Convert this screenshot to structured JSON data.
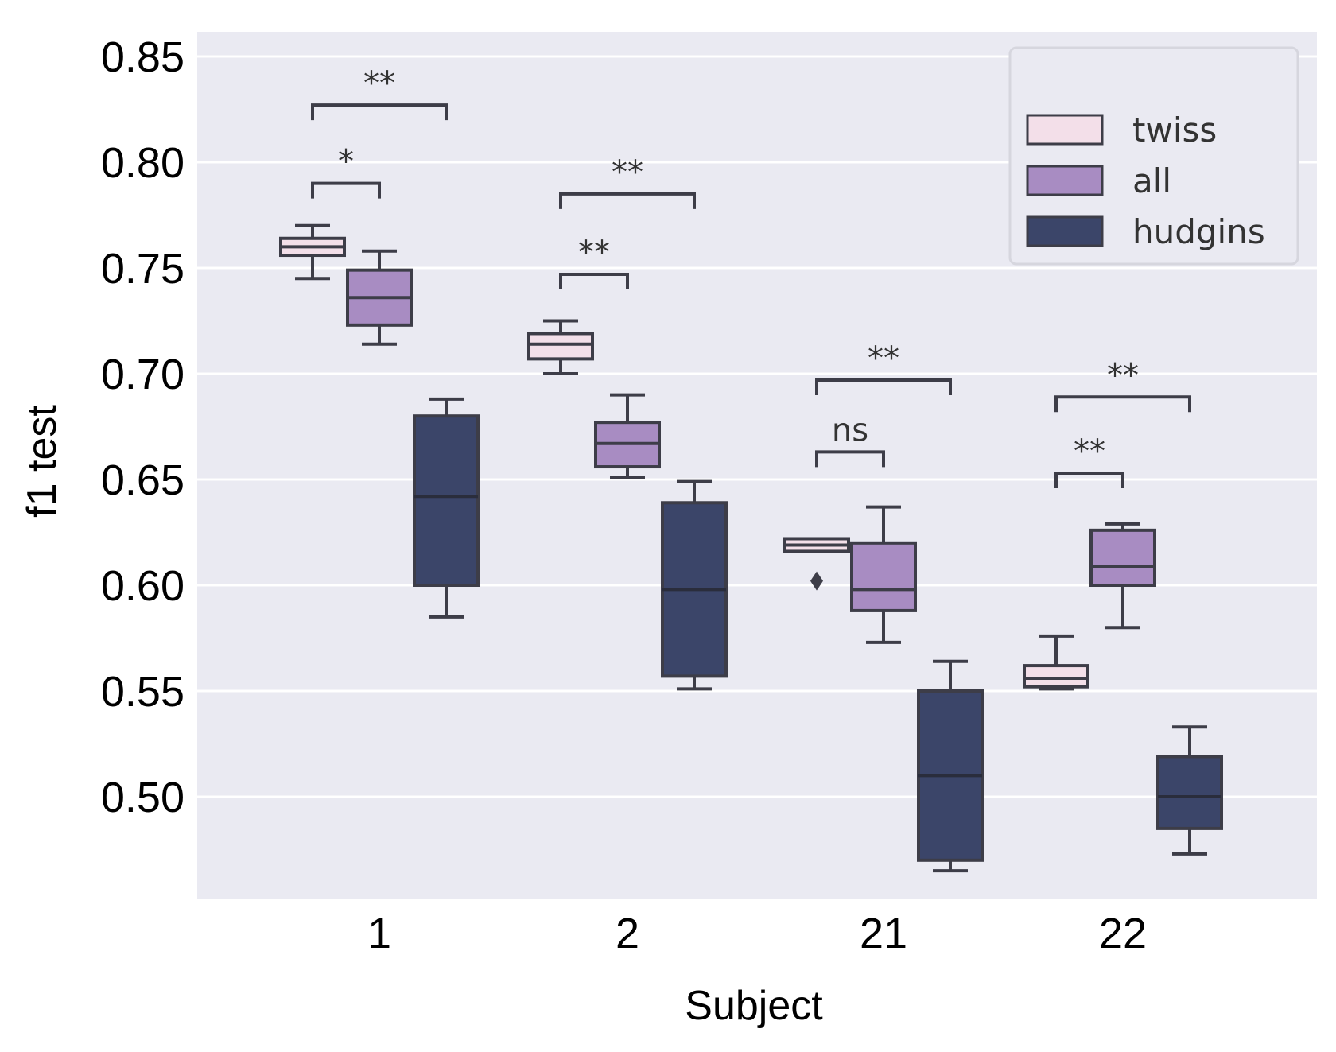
{
  "chart_data": {
    "type": "boxplot",
    "xlabel": "Subject",
    "ylabel": "f1 test",
    "ylim": [
      0.453,
      0.863
    ],
    "yticks": [
      0.5,
      0.55,
      0.6,
      0.65,
      0.7,
      0.75,
      0.8,
      0.85
    ],
    "ytick_labels": [
      "0.50",
      "0.55",
      "0.60",
      "0.65",
      "0.70",
      "0.75",
      "0.80",
      "0.85"
    ],
    "categories": [
      "1",
      "2",
      "21",
      "22"
    ],
    "grid": true,
    "legend_position": "top-right",
    "series": [
      {
        "name": "twiss",
        "color": "#f3dfe9",
        "boxes": [
          {
            "whislo": 0.745,
            "q1": 0.756,
            "med": 0.76,
            "q3": 0.764,
            "whishi": 0.77,
            "fliers": []
          },
          {
            "whislo": 0.7,
            "q1": 0.707,
            "med": 0.714,
            "q3": 0.719,
            "whishi": 0.725,
            "fliers": []
          },
          {
            "whislo": 0.616,
            "q1": 0.616,
            "med": 0.619,
            "q3": 0.622,
            "whishi": 0.622,
            "fliers": [
              0.602
            ]
          },
          {
            "whislo": 0.551,
            "q1": 0.552,
            "med": 0.556,
            "q3": 0.562,
            "whishi": 0.576,
            "fliers": []
          }
        ]
      },
      {
        "name": "all",
        "color": "#a88cc2",
        "boxes": [
          {
            "whislo": 0.714,
            "q1": 0.723,
            "med": 0.736,
            "q3": 0.749,
            "whishi": 0.758,
            "fliers": []
          },
          {
            "whislo": 0.651,
            "q1": 0.656,
            "med": 0.667,
            "q3": 0.677,
            "whishi": 0.69,
            "fliers": []
          },
          {
            "whislo": 0.573,
            "q1": 0.588,
            "med": 0.598,
            "q3": 0.62,
            "whishi": 0.637,
            "fliers": []
          },
          {
            "whislo": 0.58,
            "q1": 0.6,
            "med": 0.609,
            "q3": 0.626,
            "whishi": 0.629,
            "fliers": []
          }
        ]
      },
      {
        "name": "hudgins",
        "color": "#3b4569",
        "boxes": [
          {
            "whislo": 0.585,
            "q1": 0.6,
            "med": 0.642,
            "q3": 0.68,
            "whishi": 0.688,
            "fliers": []
          },
          {
            "whislo": 0.551,
            "q1": 0.557,
            "med": 0.598,
            "q3": 0.639,
            "whishi": 0.649,
            "fliers": []
          },
          {
            "whislo": 0.465,
            "q1": 0.47,
            "med": 0.51,
            "q3": 0.55,
            "whishi": 0.564,
            "fliers": []
          },
          {
            "whislo": 0.473,
            "q1": 0.485,
            "med": 0.5,
            "q3": 0.519,
            "whishi": 0.533,
            "fliers": []
          }
        ]
      }
    ],
    "annotations": [
      {
        "category": "1",
        "from": "twiss",
        "to": "hudgins",
        "text": "**",
        "y": 0.827
      },
      {
        "category": "1",
        "from": "twiss",
        "to": "all",
        "text": "*",
        "y": 0.79
      },
      {
        "category": "2",
        "from": "twiss",
        "to": "hudgins",
        "text": "**",
        "y": 0.785
      },
      {
        "category": "2",
        "from": "twiss",
        "to": "all",
        "text": "**",
        "y": 0.747
      },
      {
        "category": "21",
        "from": "twiss",
        "to": "hudgins",
        "text": "**",
        "y": 0.697
      },
      {
        "category": "21",
        "from": "twiss",
        "to": "all",
        "text": "ns",
        "y": 0.663
      },
      {
        "category": "22",
        "from": "twiss",
        "to": "hudgins",
        "text": "**",
        "y": 0.689
      },
      {
        "category": "22",
        "from": "twiss",
        "to": "all",
        "text": "**",
        "y": 0.653
      }
    ]
  }
}
